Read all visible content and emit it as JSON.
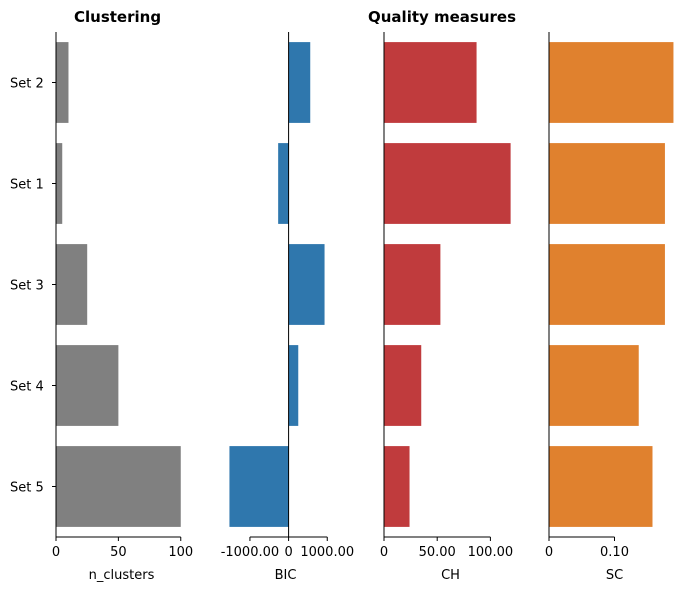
{
  "titles": {
    "left": "Clustering",
    "right": "Quality measures"
  },
  "chart_data": {
    "type": "bar",
    "orientation": "horizontal",
    "categories": [
      "Set 2",
      "Set 1",
      "Set 3",
      "Set 4",
      "Set 5"
    ],
    "panels": [
      {
        "name": "n_clusters",
        "xlabel": "n_clusters",
        "color": "#808080",
        "values": [
          10,
          5,
          25,
          50,
          100
        ],
        "xlim": [
          0,
          105
        ],
        "ticks": [
          0,
          50,
          100
        ],
        "tick_labels": [
          "0",
          "50",
          "100"
        ],
        "show_category_labels": true
      },
      {
        "name": "BIC",
        "xlabel": "BIC",
        "color": "#2f77ad",
        "values": [
          560,
          -270,
          930,
          250,
          -1530
        ],
        "xlim": [
          -1800,
          1640
        ],
        "ticks": [
          -1000,
          0,
          1000
        ],
        "tick_labels": [
          "-1000.00",
          "0",
          "1000.00"
        ],
        "show_category_labels": false
      },
      {
        "name": "CH",
        "xlabel": "CH",
        "color": "#c03b3d",
        "values": [
          87,
          119,
          53,
          35,
          24
        ],
        "xlim": [
          0,
          125
        ],
        "ticks": [
          0,
          50,
          100
        ],
        "tick_labels": [
          "0",
          "50.00",
          "100.00"
        ],
        "show_category_labels": false
      },
      {
        "name": "SC",
        "xlabel": "SC",
        "color": "#e0812e",
        "values": [
          0.19,
          0.177,
          0.177,
          0.137,
          0.158
        ],
        "xlim": [
          0,
          0.2
        ],
        "ticks": [
          0,
          0.1
        ],
        "tick_labels": [
          "0",
          "0.10"
        ],
        "show_category_labels": false
      }
    ]
  }
}
